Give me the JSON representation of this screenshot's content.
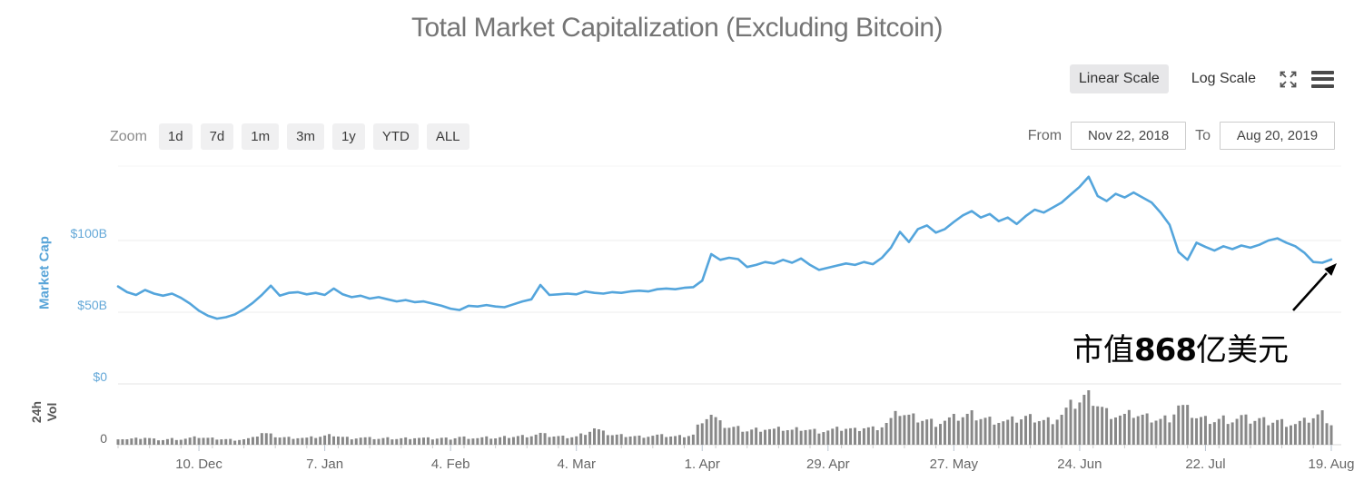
{
  "header": {
    "title": "Total Market Capitalization (Excluding Bitcoin)"
  },
  "controls": {
    "linear_label": "Linear Scale",
    "log_label": "Log Scale",
    "selected_scale": "linear",
    "icons": {
      "fullscreen": "expand-arrows-icon",
      "menu": "hamburger-menu-icon"
    }
  },
  "zoom_bar": {
    "label": "Zoom",
    "options": [
      "1d",
      "7d",
      "1m",
      "3m",
      "1y",
      "YTD",
      "ALL"
    ]
  },
  "range": {
    "from_label": "From",
    "from_value": "Nov 22, 2018",
    "to_label": "To",
    "to_value": "Aug 20, 2019"
  },
  "annotation": {
    "prefix": "市值",
    "value": "868",
    "suffix": "亿美元",
    "meaning": "Market cap $86.8B"
  },
  "colors": {
    "line": "#54a5dc",
    "axis_blue": "#64a8d8",
    "volume_bar": "#888888",
    "title_gray": "#757575",
    "x_label_gray": "#666666",
    "grid": "#ededed"
  },
  "chart_data": [
    {
      "type": "line",
      "title": "Total Market Capitalization (Excluding Bitcoin)",
      "series_name": "Market Cap",
      "ylabel": "Market Cap",
      "unit": "USD billions",
      "ylim": [
        0,
        152
      ],
      "yticks": [
        {
          "label": "$100B",
          "value": 100
        },
        {
          "label": "$50B",
          "value": 50
        },
        {
          "label": "$0",
          "value": 0
        }
      ],
      "x_start": "2018-11-22",
      "x_end": "2019-08-20",
      "point_interval_days": 2,
      "xticks": [
        {
          "label": "10. Dec",
          "day": 18
        },
        {
          "label": "7. Jan",
          "day": 46
        },
        {
          "label": "4. Feb",
          "day": 74
        },
        {
          "label": "4. Mar",
          "day": 102
        },
        {
          "label": "1. Apr",
          "day": 130
        },
        {
          "label": "29. Apr",
          "day": 158
        },
        {
          "label": "27. May",
          "day": 186
        },
        {
          "label": "24. Jun",
          "day": 214
        },
        {
          "label": "22. Jul",
          "day": 242
        },
        {
          "label": "19. Aug",
          "day": 270
        }
      ],
      "values": [
        68,
        64,
        62,
        65.5,
        63,
        61.5,
        63,
        60,
        56,
        51,
        47.5,
        45.5,
        46.5,
        48.5,
        52,
        56.5,
        62,
        68.5,
        61.5,
        63.5,
        64,
        62.5,
        63.5,
        62,
        66.5,
        62.5,
        60.5,
        61.5,
        59.5,
        60.5,
        59,
        57.5,
        58.5,
        57,
        57.5,
        56,
        54.5,
        52.5,
        51.5,
        54.5,
        54,
        55,
        54,
        53.5,
        55.5,
        57.5,
        59,
        69,
        62,
        62.5,
        63,
        62.5,
        64.5,
        63.5,
        63,
        64,
        63.5,
        64.5,
        65,
        64.5,
        66,
        66.5,
        66,
        67,
        67.5,
        72,
        90.5,
        86.5,
        88,
        87,
        81.5,
        83,
        85,
        84,
        86.5,
        84.5,
        87.5,
        83,
        79.5,
        81,
        82.5,
        84,
        83,
        85,
        83.5,
        88,
        95,
        106,
        99,
        108,
        110.5,
        105.5,
        108,
        113,
        117.5,
        120.5,
        116,
        118.5,
        113.5,
        116,
        111.5,
        117,
        121.5,
        119.5,
        123,
        126.5,
        132,
        137.5,
        144.5,
        131,
        127.5,
        132.5,
        130,
        133.5,
        130,
        126.5,
        119.5,
        111,
        92,
        86.5,
        98.5,
        95.5,
        93,
        96,
        94,
        96.5,
        95,
        97,
        100,
        101.5,
        98.5,
        96,
        91.5,
        85,
        84.5,
        86.8
      ],
      "end_value_annotation": "86.8"
    },
    {
      "type": "bar",
      "series_name": "24h Vol",
      "ylabel": "24h Vol",
      "ylabel_lines": [
        "24h",
        "Vol"
      ],
      "unit": "relative bar height % (axis scale not labeled)",
      "ylim": [
        0,
        100
      ],
      "yticks": [
        {
          "label": "0",
          "value": 0
        }
      ],
      "point_interval_days": 2,
      "values": [
        12,
        10,
        11,
        13,
        10,
        9,
        11,
        10,
        12,
        14,
        12,
        11,
        10,
        9,
        10,
        12,
        22,
        18,
        14,
        13,
        13,
        12,
        14,
        16,
        18,
        14,
        12,
        13,
        12,
        11,
        12,
        11,
        12,
        13,
        12,
        11,
        12,
        11,
        14,
        13,
        12,
        13,
        12,
        14,
        15,
        16,
        17,
        20,
        16,
        15,
        14,
        15,
        22,
        30,
        22,
        18,
        17,
        16,
        15,
        16,
        17,
        16,
        15,
        16,
        18,
        48,
        55,
        38,
        32,
        30,
        26,
        28,
        30,
        27,
        29,
        26,
        30,
        27,
        25,
        26,
        28,
        30,
        27,
        32,
        30,
        35,
        45,
        60,
        52,
        48,
        45,
        40,
        44,
        48,
        52,
        55,
        50,
        46,
        44,
        42,
        46,
        50,
        48,
        44,
        46,
        55,
        70,
        80,
        93,
        75,
        60,
        55,
        52,
        56,
        52,
        48,
        46,
        50,
        72,
        62,
        50,
        46,
        44,
        48,
        45,
        50,
        44,
        46,
        42,
        44,
        40,
        38,
        42,
        50,
        55,
        38
      ]
    }
  ]
}
